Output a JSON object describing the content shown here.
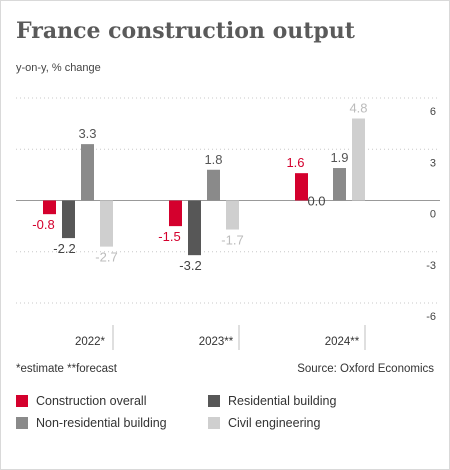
{
  "header": {
    "title": "France construction output",
    "subtitle": "y-on-y, % change"
  },
  "footer": {
    "footnote": "*estimate  **forecast",
    "source": "Source: Oxford Economics"
  },
  "colors": {
    "construction_overall": "#d4002d",
    "residential_building": "#575757",
    "non_residential_building": "#8a8a8a",
    "civil_engineering": "#cfcfcf"
  },
  "legend": [
    {
      "label": "Construction overall",
      "color": "#d4002d"
    },
    {
      "label": "Residential building",
      "color": "#575757"
    },
    {
      "label": "Non-residential building",
      "color": "#8a8a8a"
    },
    {
      "label": "Civil engineering",
      "color": "#cfcfcf"
    }
  ],
  "chart_data": {
    "type": "bar",
    "categories": [
      "2022*",
      "2023**",
      "2024**"
    ],
    "series": [
      {
        "name": "Construction overall",
        "values": [
          -0.8,
          -1.5,
          1.6
        ],
        "value_labels": [
          "-0.8",
          "-1.5",
          "1.6"
        ]
      },
      {
        "name": "Residential building",
        "values": [
          -2.2,
          -3.2,
          0.0
        ],
        "value_labels": [
          "-2.2",
          "-3.2",
          "0.0"
        ]
      },
      {
        "name": "Non-residential building",
        "values": [
          3.3,
          1.8,
          1.9
        ],
        "value_labels": [
          "3.3",
          "1.8",
          "1.9"
        ]
      },
      {
        "name": "Civil engineering",
        "values": [
          -2.7,
          -1.7,
          4.8
        ],
        "value_labels": [
          "-2.7",
          "-1.7",
          "4.8"
        ]
      }
    ],
    "ylim": [
      -6,
      6
    ],
    "yticks": [
      6,
      3,
      0,
      -3,
      -6
    ],
    "ytick_labels": [
      "6",
      "3",
      "0",
      "-3",
      "-6"
    ],
    "y_axis_position": "right",
    "grid": "horizontal dashed",
    "legend_position": "bottom"
  }
}
